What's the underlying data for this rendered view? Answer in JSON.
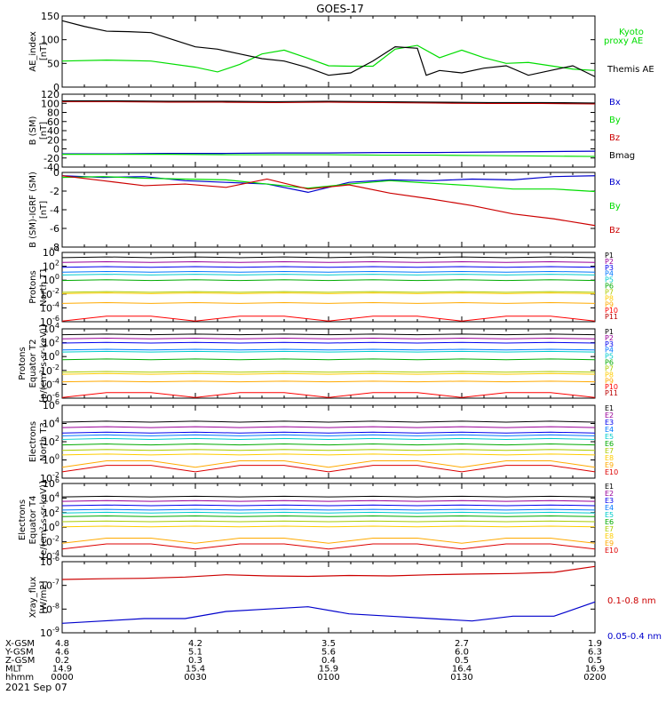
{
  "title": "GOES-17",
  "date": "2021 Sep 07",
  "colors": {
    "black": "#000000",
    "green": "#00dd00",
    "blue": "#0000cc",
    "red": "#cc0000",
    "p1": "#000000",
    "p2": "#990099",
    "p3": "#0000ee",
    "p4": "#0077ff",
    "p5": "#00cccc",
    "p6": "#00aa00",
    "p7": "#aacc00",
    "p8": "#ffcc00",
    "p9": "#ffaa00",
    "p10": "#ff0000",
    "p11": "#bb0000"
  },
  "chart_data": [
    {
      "type": "line",
      "ylabel": [
        "AE_index",
        "[nT]"
      ],
      "ylim": [
        0,
        150
      ],
      "yticks": [
        "0",
        "50",
        "100",
        "150"
      ],
      "series": [
        {
          "name": "Kyoto proxy AE",
          "color": "#00dd00",
          "x": [
            0,
            10,
            20,
            30,
            35,
            40,
            45,
            50,
            55,
            60,
            65,
            70,
            75,
            80,
            85,
            90,
            95,
            100,
            105,
            110,
            115,
            120
          ],
          "values": [
            55,
            57,
            55,
            42,
            32,
            48,
            70,
            78,
            62,
            45,
            44,
            44,
            80,
            88,
            62,
            78,
            62,
            50,
            52,
            45,
            38,
            35
          ]
        },
        {
          "name": "Themis AE",
          "color": "#000000",
          "x": [
            0,
            5,
            10,
            15,
            20,
            25,
            30,
            35,
            40,
            45,
            50,
            55,
            60,
            65,
            70,
            75,
            80,
            82,
            85,
            90,
            95,
            100,
            105,
            110,
            115,
            120
          ],
          "values": [
            140,
            128,
            118,
            117,
            115,
            100,
            85,
            80,
            70,
            60,
            55,
            42,
            25,
            30,
            55,
            85,
            82,
            25,
            35,
            30,
            40,
            45,
            25,
            35,
            45,
            22
          ]
        }
      ]
    },
    {
      "type": "line",
      "ylabel": [
        "B (SM)",
        "[nT]"
      ],
      "ylim": [
        -45,
        120
      ],
      "yticks": [
        "-40",
        "-20",
        "0",
        "20",
        "40",
        "60",
        "80",
        "100",
        "120"
      ],
      "series": [
        {
          "name": "Bx",
          "color": "#0000cc",
          "values": [
            -15,
            -15,
            -14,
            -14,
            -13,
            -13,
            -12,
            -12,
            -11,
            -10,
            -9
          ]
        },
        {
          "name": "By",
          "color": "#00dd00",
          "values": [
            -16,
            -16,
            -16,
            -17,
            -17,
            -17,
            -18,
            -18,
            -19,
            -20,
            -21
          ]
        },
        {
          "name": "Bz",
          "color": "#cc0000",
          "values": [
            103,
            103,
            102,
            102,
            101,
            102,
            101,
            100,
            99,
            99,
            98
          ]
        },
        {
          "name": "Bmag",
          "color": "#000000",
          "values": [
            105,
            105,
            104,
            104,
            103,
            104,
            103,
            102,
            101,
            101,
            100
          ]
        }
      ]
    },
    {
      "type": "line",
      "ylabel": [
        "B (SM)-IGRF (SM)",
        "[nT]"
      ],
      "ylim": [
        -9,
        0
      ],
      "yticks": [
        "-8",
        "-6",
        "-4",
        "-2",
        "0"
      ],
      "series": [
        {
          "name": "Bx",
          "color": "#0000cc",
          "values": [
            -0.4,
            -0.6,
            -0.5,
            -1.0,
            -1.2,
            -1.4,
            -2.4,
            -1.2,
            -0.9,
            -1.0,
            -0.8,
            -0.9,
            -0.5,
            -0.4
          ]
        },
        {
          "name": "By",
          "color": "#00dd00",
          "values": [
            -0.6,
            -0.5,
            -0.7,
            -0.8,
            -0.9,
            -1.4,
            -1.9,
            -1.4,
            -1.0,
            -1.3,
            -1.6,
            -2.0,
            -2.0,
            -2.3
          ]
        },
        {
          "name": "Bz",
          "color": "#cc0000",
          "values": [
            -0.4,
            -1.0,
            -1.6,
            -1.4,
            -1.8,
            -0.8,
            -2.0,
            -1.5,
            -2.5,
            -3.2,
            -4.0,
            -5.0,
            -5.6,
            -6.4
          ]
        }
      ]
    },
    {
      "type": "line",
      "ylabel": [
        "Protons",
        "North T1"
      ],
      "log": true,
      "ylim": [
        -6,
        4
      ],
      "yticks": [
        "10^-6",
        "10^-4",
        "10^-2",
        "10^0",
        "10^2",
        "10^4"
      ],
      "legend": [
        "P1",
        "P2",
        "P3",
        "P4",
        "P5",
        "P6",
        "P7",
        "P8",
        "P9",
        "P10",
        "P11"
      ],
      "levels": [
        3.3,
        2.6,
        1.9,
        1.2,
        0.8,
        0.0,
        -1.7,
        -1.9,
        -3.3,
        -5.5,
        -6.2
      ]
    },
    {
      "type": "line",
      "ylabel": [
        "Protons",
        "Equator T2",
        "[p/(cm²-s-sr-keV)]"
      ],
      "log": true,
      "ylim": [
        -6,
        4
      ],
      "yticks": [
        "10^-6",
        "10^-4",
        "10^-2",
        "10^0",
        "10^2",
        "10^4"
      ],
      "legend": [
        "P1",
        "P2",
        "P3",
        "P4",
        "P5",
        "P6",
        "P7",
        "P8",
        "P9",
        "P10",
        "P11"
      ],
      "levels": [
        3.2,
        2.6,
        2.0,
        1.0,
        0.7,
        -0.4,
        -2.2,
        -2.5,
        -3.6,
        -5.5,
        -6.2
      ]
    },
    {
      "type": "line",
      "ylabel": [
        "Electrons",
        "North T3"
      ],
      "log": true,
      "ylim": [
        -2,
        6
      ],
      "yticks": [
        "10^-2",
        "10^0",
        "10^2",
        "10^4",
        "10^6"
      ],
      "legend": [
        "E1",
        "E2",
        "E3",
        "E4",
        "E5",
        "E6",
        "E7",
        "E8",
        "E9",
        "E10"
      ],
      "levels": [
        4.2,
        3.6,
        3.0,
        2.7,
        2.3,
        1.7,
        1.1,
        0.6,
        -0.4,
        -0.9
      ]
    },
    {
      "type": "line",
      "ylabel": [
        "Electrons",
        "Equator T4",
        "[e/(cm²-s-sr-keV)]"
      ],
      "log": true,
      "ylim": [
        -4,
        6
      ],
      "yticks": [
        "10^-4",
        "10^-2",
        "10^0",
        "10^2",
        "10^4",
        "10^6"
      ],
      "legend": [
        "E1",
        "E2",
        "E3",
        "E4",
        "E5",
        "E6",
        "E7",
        "E8",
        "E9",
        "E10"
      ],
      "levels": [
        4.2,
        3.6,
        3.0,
        2.4,
        2.0,
        1.5,
        0.8,
        0.1,
        -1.8,
        -2.6
      ]
    },
    {
      "type": "line",
      "ylabel": [
        "Xray_flux",
        "[W/m2]"
      ],
      "log": true,
      "ylim": [
        -9,
        -6
      ],
      "yticks": [
        "10^-9",
        "10^-8",
        "10^-7",
        "10^-6"
      ],
      "series": [
        {
          "name": "0.1-0.8 nm",
          "color": "#cc0000",
          "values": [
            -6.75,
            -6.72,
            -6.7,
            -6.65,
            -6.55,
            -6.6,
            -6.62,
            -6.58,
            -6.6,
            -6.55,
            -6.52,
            -6.5,
            -6.45,
            -6.2
          ]
        },
        {
          "name": "0.05-0.4 nm",
          "color": "#0000cc",
          "values": [
            -8.6,
            -8.5,
            -8.4,
            -8.4,
            -8.1,
            -8.0,
            -7.9,
            -8.2,
            -8.3,
            -8.4,
            -8.5,
            -8.3,
            -8.3,
            -7.7
          ]
        }
      ]
    }
  ],
  "footer": {
    "row_labels": [
      "X-GSM",
      "Y-GSM",
      "Z-GSM",
      "MLT",
      "hhmm"
    ],
    "columns": [
      [
        "4.8",
        "4.6",
        "0.2",
        "14.9",
        "0000"
      ],
      [
        "4.2",
        "5.1",
        "0.3",
        "15.4",
        "0030"
      ],
      [
        "3.5",
        "5.6",
        "0.4",
        "15.9",
        "0100"
      ],
      [
        "2.7",
        "6.0",
        "0.5",
        "16.4",
        "0130"
      ],
      [
        "1.9",
        "6.3",
        "0.5",
        "16.9",
        "0200"
      ]
    ]
  },
  "legends": {
    "p1": {
      "kyoto": "Kyoto",
      "proxy": "proxy AE",
      "themis": "Themis AE"
    },
    "p2": [
      "Bx",
      "By",
      "Bz",
      "Bmag"
    ],
    "p3": [
      "Bx",
      "By",
      "Bz"
    ],
    "p8": [
      "0.1-0.8 nm",
      "0.05-0.4 nm"
    ]
  }
}
